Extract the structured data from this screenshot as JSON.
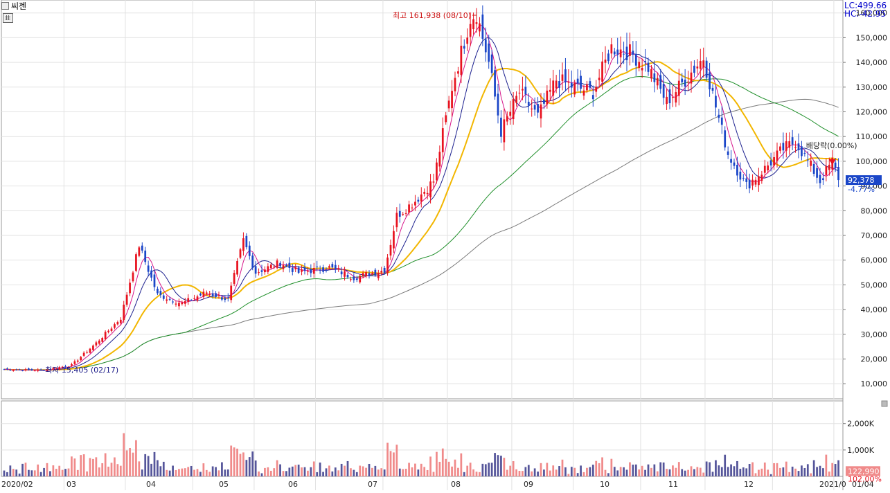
{
  "header": {
    "title": "씨젠",
    "lc": "LC:499.66",
    "hc": "HC:-42.95"
  },
  "annotations": {
    "high": "최고 161,938 (08/10)",
    "low": "최저 15,405 (02/17)",
    "dividend": "배당락(0.00%)"
  },
  "price_box": {
    "value": "92,378",
    "change": "-4.77%"
  },
  "volume_box": {
    "value": "122,990",
    "ratio": "102.00%"
  },
  "colors": {
    "up": "#e8121f",
    "down": "#1a46c8",
    "ma5": "#d6148a",
    "ma10": "#1b1f8e",
    "ma20": "#f2b600",
    "ma60": "#1f8f2a",
    "ma120": "#7a7a7a",
    "vol_up": "#f08a8a",
    "vol_down": "#55559a"
  },
  "chart_data": {
    "type": "candlestick",
    "y_ticks": [
      "10,000",
      "20,000",
      "30,000",
      "40,000",
      "50,000",
      "60,000",
      "70,000",
      "80,000",
      "90,000",
      "100,000",
      "110,000",
      "120,000",
      "130,000",
      "140,000",
      "150,000",
      "160,000"
    ],
    "ylim": [
      5000,
      163000
    ],
    "vol_ticks": [
      "1,000K",
      "2,000K"
    ],
    "x_labels": [
      "2020/02",
      "03",
      "04",
      "05",
      "06",
      "07",
      "08",
      "09",
      "10",
      "11",
      "12",
      "2021/0",
      "01/04"
    ],
    "anchors": [
      {
        "d": 0,
        "c": 15800
      },
      {
        "d": 12,
        "c": 15405
      },
      {
        "d": 22,
        "c": 17500
      },
      {
        "d": 30,
        "c": 26500
      },
      {
        "d": 38,
        "c": 36500
      },
      {
        "d": 44,
        "c": 66000
      },
      {
        "d": 50,
        "c": 46000
      },
      {
        "d": 58,
        "c": 42500
      },
      {
        "d": 66,
        "c": 47000
      },
      {
        "d": 73,
        "c": 44000
      },
      {
        "d": 78,
        "c": 68000
      },
      {
        "d": 82,
        "c": 55000
      },
      {
        "d": 90,
        "c": 59000
      },
      {
        "d": 96,
        "c": 55000
      },
      {
        "d": 106,
        "c": 57000
      },
      {
        "d": 114,
        "c": 53000
      },
      {
        "d": 124,
        "c": 56000
      },
      {
        "d": 128,
        "c": 78000
      },
      {
        "d": 134,
        "c": 84000
      },
      {
        "d": 140,
        "c": 92000
      },
      {
        "d": 146,
        "c": 130000
      },
      {
        "d": 152,
        "c": 158000
      },
      {
        "d": 154,
        "c": 160000
      },
      {
        "d": 158,
        "c": 140000
      },
      {
        "d": 162,
        "c": 112000
      },
      {
        "d": 168,
        "c": 128000
      },
      {
        "d": 174,
        "c": 118000
      },
      {
        "d": 180,
        "c": 133000
      },
      {
        "d": 186,
        "c": 130000
      },
      {
        "d": 192,
        "c": 128000
      },
      {
        "d": 198,
        "c": 146000
      },
      {
        "d": 204,
        "c": 144000
      },
      {
        "d": 210,
        "c": 138000
      },
      {
        "d": 216,
        "c": 124000
      },
      {
        "d": 222,
        "c": 133000
      },
      {
        "d": 228,
        "c": 142000
      },
      {
        "d": 232,
        "c": 122000
      },
      {
        "d": 236,
        "c": 103000
      },
      {
        "d": 242,
        "c": 90000
      },
      {
        "d": 248,
        "c": 97000
      },
      {
        "d": 254,
        "c": 105000
      },
      {
        "d": 258,
        "c": 108000
      },
      {
        "d": 262,
        "c": 100000
      },
      {
        "d": 266,
        "c": 92000
      },
      {
        "d": 270,
        "c": 100000
      },
      {
        "d": 272,
        "c": 92378
      }
    ]
  }
}
